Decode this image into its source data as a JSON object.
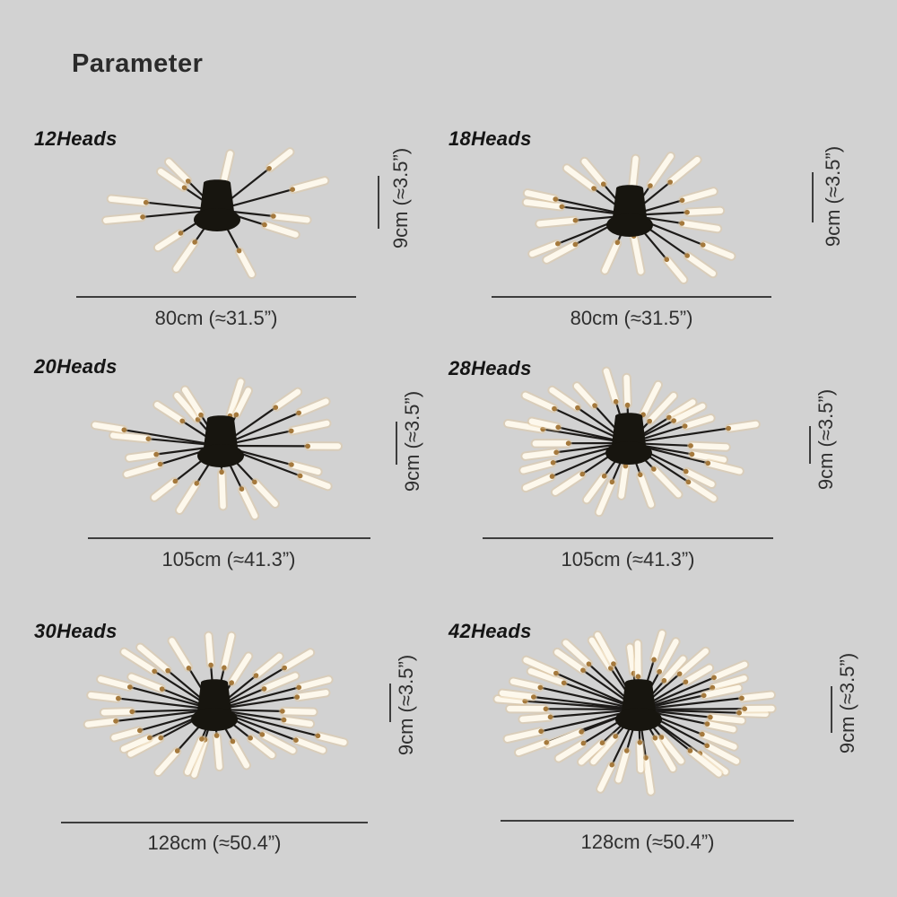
{
  "page": {
    "title": "Parameter"
  },
  "colors": {
    "background": "#d2d2d2",
    "dimension_line": "#3d3d3d",
    "dimension_text": "#2f2f2f",
    "label_text": "#151515",
    "lamp_black": "#17150f",
    "rod_black": "#1d1b19",
    "tube_white": "#fdf8ec",
    "tube_glow": "rgba(226,200,158,0.45)",
    "connector_gold": "#a5793c"
  },
  "panels": [
    {
      "id": "12heads",
      "label": "12Heads",
      "heads": 12,
      "width_label": "80cm (≈31.5”)",
      "height_label": "9cm (≈3.5”)"
    },
    {
      "id": "18heads",
      "label": "18Heads",
      "heads": 18,
      "width_label": "80cm (≈31.5”)",
      "height_label": "9cm (≈3.5”)"
    },
    {
      "id": "20heads",
      "label": "20Heads",
      "heads": 20,
      "width_label": "105cm (≈41.3”)",
      "height_label": "9cm (≈3.5”)"
    },
    {
      "id": "28heads",
      "label": "28Heads",
      "heads": 28,
      "width_label": "105cm (≈41.3”)",
      "height_label": "9cm (≈3.5”)"
    },
    {
      "id": "30heads",
      "label": "30Heads",
      "heads": 30,
      "width_label": "128cm (≈50.4”)",
      "height_label": "9cm (≈3.5”)"
    },
    {
      "id": "42heads",
      "label": "42Heads",
      "heads": 42,
      "width_label": "128cm (≈50.4”)",
      "height_label": "9cm (≈3.5”)"
    }
  ]
}
